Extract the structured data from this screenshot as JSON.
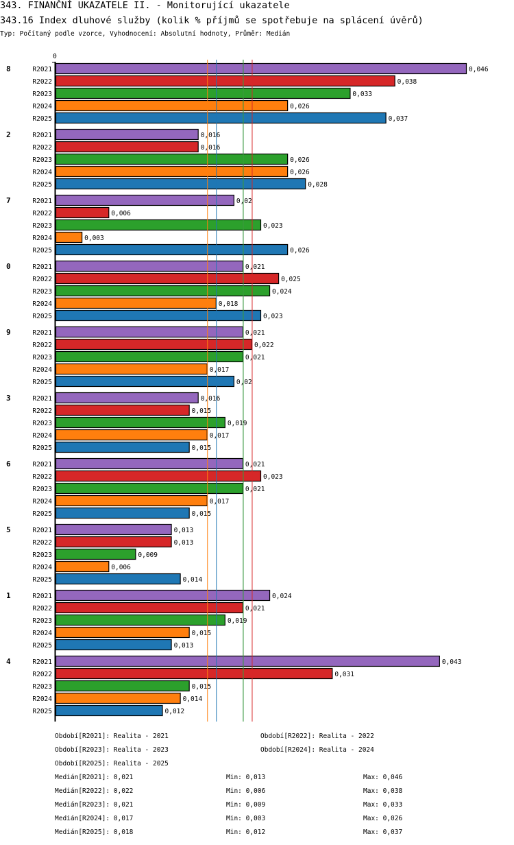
{
  "header": {
    "title": "343. FINANČNÍ UKAZATELE II. - Monitorující ukazatele",
    "subtitle": "343.16 Index dluhové služby (kolik % příjmů se spotřebuje na splácení úvěrů)",
    "info": "Typ: Počítaný podle vzorce, Vyhodnocení: Absolutní hodnoty, Průměr: Medián"
  },
  "chart_data": {
    "type": "bar",
    "orientation": "horizontal",
    "title": "343.16 Index dluhové služby (kolik % příjmů se spotřebuje na splácení úvěrů)",
    "xlabel": "",
    "ylabel": "",
    "x_tick_labels": [
      "0"
    ],
    "xlim": [
      0,
      0.046
    ],
    "grid": false,
    "series_names": [
      "R2021",
      "R2022",
      "R2023",
      "R2024",
      "R2025"
    ],
    "series_colors": {
      "R2021": "#9467bd",
      "R2022": "#d62728",
      "R2023": "#2ca02c",
      "R2024": "#ff7f0e",
      "R2025": "#1f77b4"
    },
    "groups": [
      {
        "label": "8",
        "values": [
          0.046,
          0.038,
          0.033,
          0.026,
          0.037
        ],
        "value_labels": [
          "0,046",
          "0,038",
          "0,033",
          "0,026",
          "0,037"
        ]
      },
      {
        "label": "2",
        "values": [
          0.016,
          0.016,
          0.026,
          0.026,
          0.028
        ],
        "value_labels": [
          "0,016",
          "0,016",
          "0,026",
          "0,026",
          "0,028"
        ]
      },
      {
        "label": "7",
        "values": [
          0.02,
          0.006,
          0.023,
          0.003,
          0.026
        ],
        "value_labels": [
          "0,02",
          "0,006",
          "0,023",
          "0,003",
          "0,026"
        ]
      },
      {
        "label": "0",
        "values": [
          0.021,
          0.025,
          0.024,
          0.018,
          0.023
        ],
        "value_labels": [
          "0,021",
          "0,025",
          "0,024",
          "0,018",
          "0,023"
        ]
      },
      {
        "label": "9",
        "values": [
          0.021,
          0.022,
          0.021,
          0.017,
          0.02
        ],
        "value_labels": [
          "0,021",
          "0,022",
          "0,021",
          "0,017",
          "0,02"
        ]
      },
      {
        "label": "3",
        "values": [
          0.016,
          0.015,
          0.019,
          0.017,
          0.015
        ],
        "value_labels": [
          "0,016",
          "0,015",
          "0,019",
          "0,017",
          "0,015"
        ]
      },
      {
        "label": "6",
        "values": [
          0.021,
          0.023,
          0.021,
          0.017,
          0.015
        ],
        "value_labels": [
          "0,021",
          "0,023",
          "0,021",
          "0,017",
          "0,015"
        ]
      },
      {
        "label": "5",
        "values": [
          0.013,
          0.013,
          0.009,
          0.006,
          0.014
        ],
        "value_labels": [
          "0,013",
          "0,013",
          "0,009",
          "0,006",
          "0,014"
        ]
      },
      {
        "label": "1",
        "values": [
          0.024,
          0.021,
          0.019,
          0.015,
          0.013
        ],
        "value_labels": [
          "0,024",
          "0,021",
          "0,019",
          "0,015",
          "0,013"
        ]
      },
      {
        "label": "4",
        "values": [
          0.043,
          0.031,
          0.015,
          0.014,
          0.012
        ],
        "value_labels": [
          "0,043",
          "0,031",
          "0,015",
          "0,014",
          "0,012"
        ]
      }
    ],
    "median_lines": [
      {
        "series": "R2021",
        "value": 0.021
      },
      {
        "series": "R2022",
        "value": 0.022
      },
      {
        "series": "R2023",
        "value": 0.021
      },
      {
        "series": "R2024",
        "value": 0.017
      },
      {
        "series": "R2025",
        "value": 0.018
      }
    ],
    "legend_position": "bottom"
  },
  "legend": {
    "periods": [
      "Období[R2021]: Realita - 2021",
      "Období[R2022]: Realita - 2022",
      "Období[R2023]: Realita - 2023",
      "Období[R2024]: Realita - 2024",
      "Období[R2025]: Realita - 2025"
    ],
    "stats": [
      {
        "median": "Medián[R2021]: 0,021",
        "min": "Min: 0,013",
        "max": "Max: 0,046"
      },
      {
        "median": "Medián[R2022]: 0,022",
        "min": "Min: 0,006",
        "max": "Max: 0,038"
      },
      {
        "median": "Medián[R2023]: 0,021",
        "min": "Min: 0,009",
        "max": "Max: 0,033"
      },
      {
        "median": "Medián[R2024]: 0,017",
        "min": "Min: 0,003",
        "max": "Max: 0,026"
      },
      {
        "median": "Medián[R2025]: 0,018",
        "min": "Min: 0,012",
        "max": "Max: 0,037"
      }
    ]
  }
}
